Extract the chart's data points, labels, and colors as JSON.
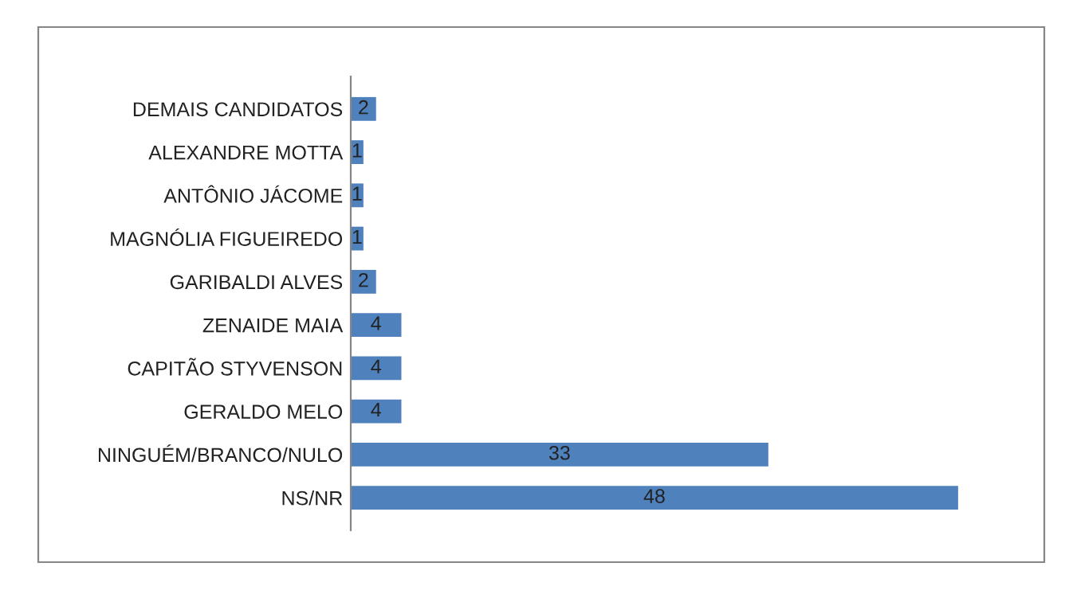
{
  "chart_data": {
    "type": "bar",
    "orientation": "horizontal",
    "categories": [
      "DEMAIS CANDIDATOS",
      "ALEXANDRE MOTTA",
      "ANTÔNIO JÁCOME",
      "MAGNÓLIA FIGUEIREDO",
      "GARIBALDI ALVES",
      "ZENAIDE MAIA",
      "CAPITÃO STYVENSON",
      "GERALDO MELO",
      "NINGUÉM/BRANCO/NULO",
      "NS/NR"
    ],
    "values": [
      2,
      1,
      1,
      1,
      2,
      4,
      4,
      4,
      33,
      48
    ],
    "color": "#4f81bd",
    "data_labels": true,
    "grid": false,
    "legend": false,
    "tick_labels": "y"
  }
}
